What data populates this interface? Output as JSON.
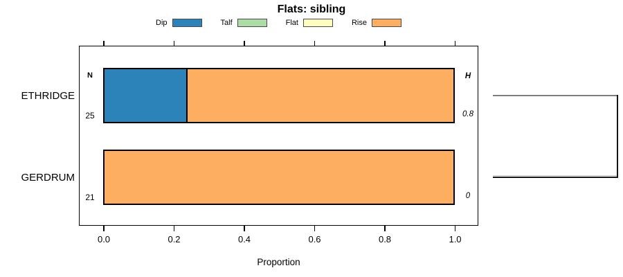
{
  "title": "Flats: sibling",
  "legend": {
    "items": [
      {
        "label": "Dip",
        "color": "#2b83ba"
      },
      {
        "label": "Talf",
        "color": "#abdda4"
      },
      {
        "label": "Flat",
        "color": "#ffffbf"
      },
      {
        "label": "Rise",
        "color": "#fdae61"
      }
    ]
  },
  "columns": {
    "left_header": "N",
    "right_header": "H"
  },
  "rows": [
    {
      "name": "ETHRIDGE",
      "n": "25",
      "h": "0.8",
      "segments": [
        {
          "category": "Dip",
          "value": 0.24
        },
        {
          "category": "Rise",
          "value": 0.76
        }
      ]
    },
    {
      "name": "GERDRUM",
      "n": "21",
      "h": "0",
      "segments": [
        {
          "category": "Rise",
          "value": 1.0
        }
      ]
    }
  ],
  "x_axis": {
    "tick_labels": [
      "0.0",
      "0.2",
      "0.4",
      "0.6",
      "0.8",
      "1.0"
    ],
    "label": "Proportion"
  },
  "bracket": {
    "joins": [
      "ETHRIDGE",
      "GERDRUM"
    ],
    "gray_color": "#7d7d7d",
    "dark_color": "#151515"
  },
  "chart_data": {
    "type": "bar",
    "orientation": "horizontal",
    "stacked": true,
    "title": "Flats: sibling",
    "xlabel": "Proportion",
    "xlim": [
      0,
      1
    ],
    "xticks": [
      0.0,
      0.2,
      0.4,
      0.6,
      0.8,
      1.0
    ],
    "grid": false,
    "legend_position": "top",
    "categories": [
      "ETHRIDGE",
      "GERDRUM"
    ],
    "series": [
      {
        "name": "Dip",
        "color": "#2b83ba",
        "values": [
          0.24,
          0
        ]
      },
      {
        "name": "Talf",
        "color": "#abdda4",
        "values": [
          0,
          0
        ]
      },
      {
        "name": "Flat",
        "color": "#ffffbf",
        "values": [
          0,
          0
        ]
      },
      {
        "name": "Rise",
        "color": "#fdae61",
        "values": [
          0.76,
          1.0
        ]
      }
    ],
    "annotations": {
      "N": [
        25,
        21
      ],
      "H": [
        0.8,
        0
      ]
    },
    "right_marginal": "cluster bracket joining ETHRIDGE and GERDRUM"
  }
}
